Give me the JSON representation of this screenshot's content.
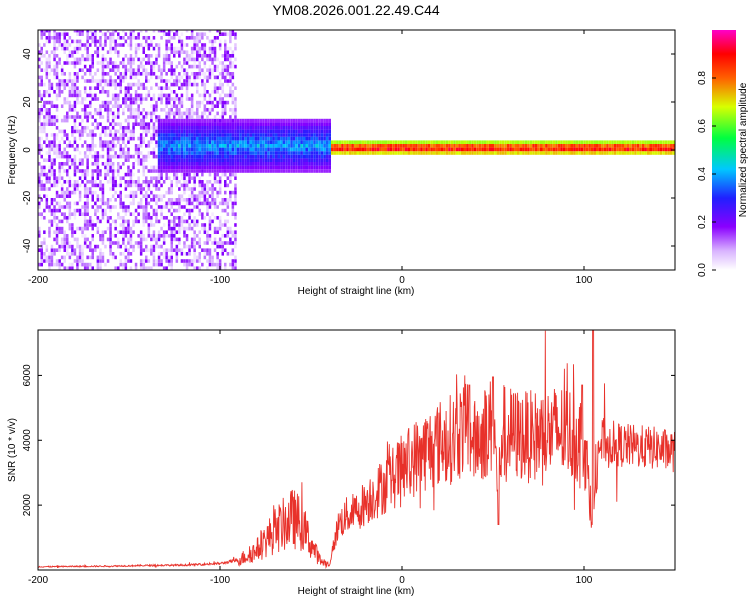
{
  "title": "YM08.2026.001.22.49.C44",
  "colors": {
    "spectrogram_low": "#8a00ff",
    "spectrogram_high": "#ff0000",
    "snr_line": "#e8312a"
  },
  "chart_data": [
    {
      "type": "heatmap",
      "name": "spectrogram",
      "title": "YM08.2026.001.22.49.C44",
      "xlabel": "Height of straight line (km)",
      "ylabel": "Frequency (Hz)",
      "xlim": [
        -200,
        150
      ],
      "ylim": [
        -50,
        50
      ],
      "xticks": [
        -200,
        -100,
        0,
        100
      ],
      "yticks": [
        -40,
        -20,
        0,
        20,
        40
      ],
      "colorbar": {
        "label": "Normalized spectral amplitude",
        "range": [
          0,
          1
        ],
        "ticks": [
          "0.0",
          "0.2",
          "0.4",
          "0.6",
          "0.8"
        ],
        "colormap": "rainbow (violet-blue-cyan-green-yellow-red-magenta)"
      },
      "regions": [
        {
          "x_range": [
            -200,
            -92
          ],
          "description": "broadband noise",
          "freq_range": [
            -50,
            50
          ],
          "amplitude": [
            0.02,
            0.2
          ]
        },
        {
          "x_range": [
            -135,
            -40
          ],
          "description": "signal band",
          "freq_range": [
            -10,
            12
          ],
          "amplitude": [
            0.15,
            0.45
          ]
        },
        {
          "x_range": [
            -40,
            150
          ],
          "description": "narrow signal band",
          "freq_range": [
            -3,
            3
          ],
          "amplitude": [
            0.6,
            1.0
          ]
        }
      ]
    },
    {
      "type": "line",
      "name": "snr",
      "xlabel": "Height of straight line (km)",
      "ylabel": "SNR (10 * v/v)",
      "xlim": [
        -200,
        150
      ],
      "ylim": [
        0,
        7400
      ],
      "xticks": [
        -200,
        -100,
        0,
        100
      ],
      "yticks": [
        2000,
        4000,
        6000
      ],
      "series": [
        {
          "name": "SNR",
          "x": [
            -200,
            -180,
            -160,
            -140,
            -120,
            -100,
            -90,
            -80,
            -70,
            -60,
            -55,
            -50,
            -45,
            -40,
            -35,
            -30,
            -25,
            -20,
            -10,
            0,
            10,
            20,
            30,
            35,
            40,
            45,
            50,
            53,
            55,
            60,
            70,
            80,
            90,
            95,
            100,
            105,
            108,
            110,
            120,
            130,
            140,
            150
          ],
          "values": [
            100,
            110,
            120,
            140,
            150,
            200,
            300,
            600,
            1200,
            1600,
            1400,
            800,
            300,
            150,
            1400,
            1700,
            1800,
            2100,
            2600,
            3100,
            3600,
            3900,
            4100,
            4500,
            3900,
            4200,
            4500,
            2500,
            4300,
            4200,
            4100,
            4200,
            4300,
            4100,
            4000,
            1500,
            4000,
            4000,
            3850,
            3800,
            3750,
            3650
          ],
          "spikes": [
            {
              "x": 37,
              "value": 5700
            },
            {
              "x": 50,
              "value": 5950
            },
            {
              "x": 53,
              "value": 1400
            },
            {
              "x": 99,
              "value": 5700
            },
            {
              "x": 105,
              "value": 7400
            }
          ]
        }
      ]
    }
  ]
}
